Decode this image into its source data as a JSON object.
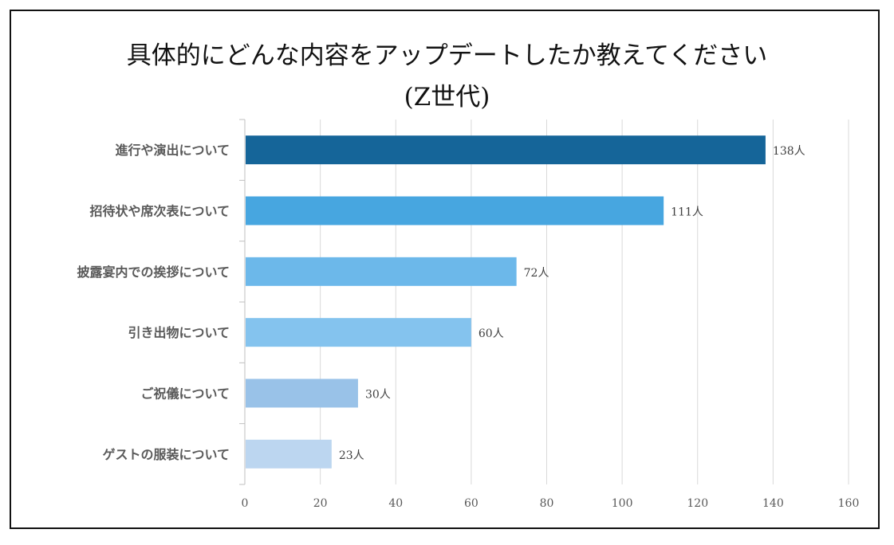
{
  "chart_data": {
    "type": "bar",
    "orientation": "horizontal",
    "title": "具体的にどんな内容をアップデートしたか教えてください",
    "subtitle": "(Z世代)",
    "categories": [
      "進行や演出について",
      "招待状や席次表について",
      "披露宴内での挨拶について",
      "引き出物について",
      "ご祝儀について",
      "ゲストの服装について"
    ],
    "values": [
      138,
      111,
      72,
      60,
      30,
      23
    ],
    "value_unit": "人",
    "colors": [
      "#156599",
      "#47a6e0",
      "#6cb8ea",
      "#84c3ee",
      "#99c2e8",
      "#bcd6f0"
    ],
    "xlim": [
      0,
      160
    ],
    "xticks": [
      0,
      20,
      40,
      60,
      80,
      100,
      120,
      140,
      160
    ],
    "grid": true,
    "xlabel": "",
    "ylabel": ""
  }
}
